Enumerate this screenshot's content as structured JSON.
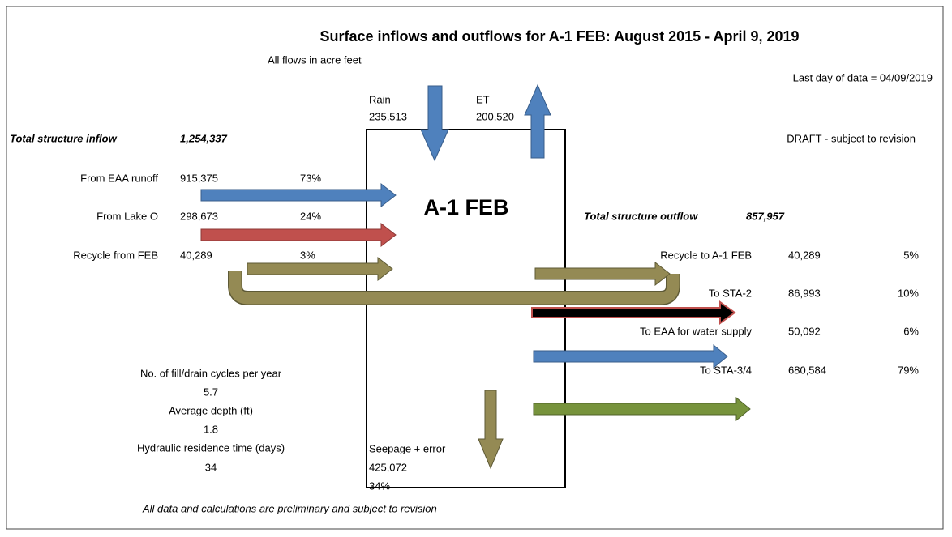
{
  "title": "Surface inflows and outflows for A-1 FEB: August 2015 - April 9, 2019",
  "subtitle": "All flows in acre feet",
  "last_day": "Last day of data = 04/09/2019",
  "draft": "DRAFT - subject to revision",
  "rain": {
    "label": "Rain",
    "value": "235,513"
  },
  "et": {
    "label": "ET",
    "value": "200,520"
  },
  "box_label": "A-1 FEB",
  "inflow": {
    "label": "Total structure inflow",
    "value": "1,254,337",
    "rows": [
      {
        "label": "From EAA runoff",
        "value": "915,375",
        "percent": "73%"
      },
      {
        "label": "From Lake O",
        "value": "298,673",
        "percent": "24%"
      },
      {
        "label": "Recycle from FEB",
        "value": "40,289",
        "percent": "3%"
      }
    ]
  },
  "outflow": {
    "label": "Total structure outflow",
    "value": "857,957",
    "rows": [
      {
        "label": "Recycle to A-1 FEB",
        "value": "40,289",
        "percent": "5%"
      },
      {
        "label": "To STA-2",
        "value": "86,993",
        "percent": "10%"
      },
      {
        "label": "To EAA for water supply",
        "value": "50,092",
        "percent": "6%"
      },
      {
        "label": "To STA-3/4",
        "value": "680,584",
        "percent": "79%"
      }
    ]
  },
  "stats": [
    {
      "label": "No. of fill/drain cycles per year",
      "value": "5.7"
    },
    {
      "label": "Average depth (ft)",
      "value": "1.8"
    },
    {
      "label": "Hydraulic residence time (days)",
      "value": "34"
    }
  ],
  "seepage": {
    "label": "Seepage + error",
    "value": "425,072",
    "percent": "34%"
  },
  "footnote": "All data and calculations are preliminary and subject to revision"
}
